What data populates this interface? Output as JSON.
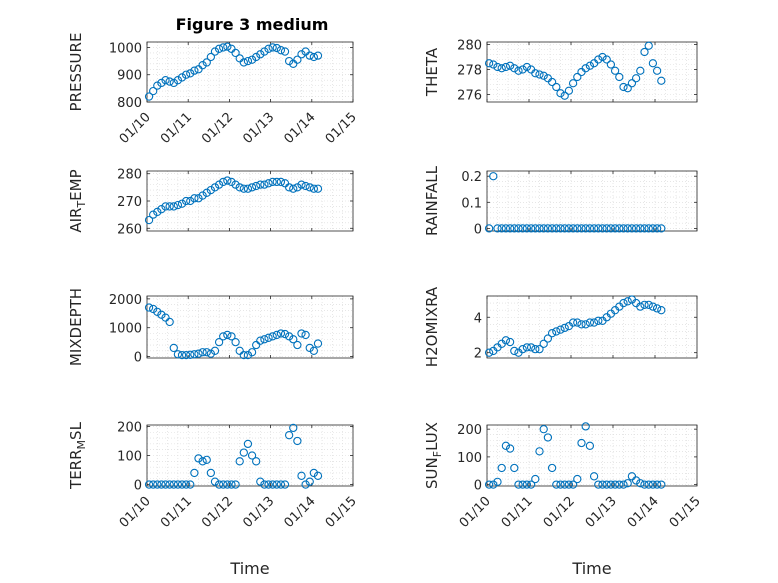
{
  "figure": {
    "title": "Figure 3 medium",
    "marker_color": "#0072BD"
  },
  "chart_data": [
    {
      "type": "scatter",
      "title": "Figure 3 medium",
      "ylabel": "PRESSURE",
      "ylim": [
        800,
        1020
      ],
      "yticks": [
        800,
        900,
        1000
      ],
      "xlim": [
        "01/10",
        "01/15"
      ],
      "xticks": [
        "01/10",
        "01/11",
        "01/12",
        "01/13",
        "01/14",
        "01/15"
      ],
      "grid": true,
      "series": [
        {
          "x": [
            10.05,
            10.15,
            10.25,
            10.35,
            10.45,
            10.55,
            10.65,
            10.75,
            10.85,
            10.95,
            11.05,
            11.15,
            11.25,
            11.35,
            11.45,
            11.55,
            11.65,
            11.75,
            11.85,
            11.95,
            12.05,
            12.15,
            12.25,
            12.35,
            12.45,
            12.55,
            12.65,
            12.75,
            12.85,
            12.95,
            13.05,
            13.15,
            13.25,
            13.35,
            13.45,
            13.55,
            13.65,
            13.75,
            13.85,
            13.95,
            14.05,
            14.15
          ],
          "y": [
            820,
            840,
            860,
            870,
            880,
            875,
            870,
            880,
            890,
            900,
            905,
            915,
            920,
            935,
            945,
            965,
            985,
            995,
            1000,
            1003,
            995,
            980,
            960,
            945,
            950,
            955,
            965,
            975,
            985,
            995,
            1000,
            998,
            990,
            985,
            950,
            940,
            955,
            975,
            985,
            970,
            965,
            970
          ]
        }
      ]
    },
    {
      "type": "scatter",
      "ylabel": "THETA",
      "ylim": [
        275.4,
        280.2
      ],
      "yticks": [
        276,
        278,
        280
      ],
      "xlim": [
        "01/10",
        "01/15"
      ],
      "grid": true,
      "series": [
        {
          "x": [
            10.05,
            10.15,
            10.25,
            10.35,
            10.45,
            10.55,
            10.65,
            10.75,
            10.85,
            10.95,
            11.05,
            11.15,
            11.25,
            11.35,
            11.45,
            11.55,
            11.65,
            11.75,
            11.85,
            11.95,
            12.05,
            12.15,
            12.25,
            12.35,
            12.45,
            12.55,
            12.65,
            12.75,
            12.85,
            12.95,
            13.05,
            13.15,
            13.25,
            13.35,
            13.45,
            13.55,
            13.65,
            13.75,
            13.85,
            13.95,
            14.05,
            14.15
          ],
          "y": [
            278.5,
            278.4,
            278.2,
            278.1,
            278.2,
            278.3,
            278.1,
            277.9,
            278.0,
            278.2,
            278.0,
            277.7,
            277.6,
            277.5,
            277.3,
            277.0,
            276.6,
            276.1,
            275.9,
            276.3,
            276.9,
            277.4,
            277.8,
            278.1,
            278.3,
            278.5,
            278.8,
            279.0,
            278.8,
            278.4,
            277.9,
            277.4,
            276.6,
            276.5,
            276.9,
            277.3,
            277.9,
            279.4,
            279.9,
            278.5,
            277.9,
            277.1
          ]
        }
      ]
    },
    {
      "type": "scatter",
      "ylabel": "AIR",
      "ylabel_sub": "T",
      "ylabel_rest": "EMP",
      "ylim": [
        259,
        281
      ],
      "yticks": [
        260,
        270,
        280
      ],
      "xlim": [
        "01/10",
        "01/15"
      ],
      "grid": true,
      "series": [
        {
          "x": [
            10.05,
            10.15,
            10.25,
            10.35,
            10.45,
            10.55,
            10.65,
            10.75,
            10.85,
            10.95,
            11.05,
            11.15,
            11.25,
            11.35,
            11.45,
            11.55,
            11.65,
            11.75,
            11.85,
            11.95,
            12.05,
            12.15,
            12.25,
            12.35,
            12.45,
            12.55,
            12.65,
            12.75,
            12.85,
            12.95,
            13.05,
            13.15,
            13.25,
            13.35,
            13.45,
            13.55,
            13.65,
            13.75,
            13.85,
            13.95,
            14.05,
            14.15
          ],
          "y": [
            263,
            265,
            266,
            267,
            268,
            268,
            268,
            268.5,
            269,
            270,
            270,
            271,
            271,
            272,
            273,
            274,
            275,
            276,
            277,
            277.5,
            277,
            276,
            275,
            274.5,
            274.5,
            275,
            275.5,
            276,
            276,
            276.5,
            277,
            277,
            277,
            276.5,
            275,
            274.5,
            275,
            276,
            275.5,
            275,
            274.5,
            274.5
          ]
        }
      ]
    },
    {
      "type": "scatter",
      "ylabel": "RAINFALL",
      "ylim": [
        -0.01,
        0.22
      ],
      "yticks": [
        0,
        0.1,
        0.2
      ],
      "ytick_labels": [
        "0",
        "0.1",
        "0.2"
      ],
      "xlim": [
        "01/10",
        "01/15"
      ],
      "grid": true,
      "series": [
        {
          "x": [
            10.05,
            10.15,
            10.25,
            10.35,
            10.45,
            10.55,
            10.65,
            10.75,
            10.85,
            10.95,
            11.05,
            11.15,
            11.25,
            11.35,
            11.45,
            11.55,
            11.65,
            11.75,
            11.85,
            11.95,
            12.05,
            12.15,
            12.25,
            12.35,
            12.45,
            12.55,
            12.65,
            12.75,
            12.85,
            12.95,
            13.05,
            13.15,
            13.25,
            13.35,
            13.45,
            13.55,
            13.65,
            13.75,
            13.85,
            13.95,
            14.05,
            14.15
          ],
          "y": [
            0,
            0.2,
            0,
            0,
            0,
            0,
            0,
            0,
            0,
            0,
            0,
            0,
            0,
            0,
            0,
            0,
            0,
            0,
            0,
            0,
            0,
            0,
            0,
            0,
            0,
            0,
            0,
            0,
            0,
            0,
            0,
            0,
            0,
            0,
            0,
            0,
            0,
            0,
            0,
            0,
            0,
            0
          ]
        }
      ]
    },
    {
      "type": "scatter",
      "ylabel": "MIXDEPTH",
      "ylim": [
        -50,
        2100
      ],
      "yticks": [
        0,
        1000,
        2000
      ],
      "xlim": [
        "01/10",
        "01/15"
      ],
      "grid": true,
      "series": [
        {
          "x": [
            10.05,
            10.15,
            10.25,
            10.35,
            10.45,
            10.55,
            10.65,
            10.75,
            10.85,
            10.95,
            11.05,
            11.15,
            11.25,
            11.35,
            11.45,
            11.55,
            11.65,
            11.75,
            11.85,
            11.95,
            12.05,
            12.15,
            12.25,
            12.35,
            12.45,
            12.55,
            12.65,
            12.75,
            12.85,
            12.95,
            13.05,
            13.15,
            13.25,
            13.35,
            13.45,
            13.55,
            13.65,
            13.75,
            13.85,
            13.95,
            14.05,
            14.15
          ],
          "y": [
            1700,
            1650,
            1550,
            1450,
            1350,
            1200,
            300,
            80,
            50,
            50,
            60,
            80,
            100,
            150,
            150,
            100,
            200,
            500,
            700,
            750,
            700,
            500,
            200,
            50,
            50,
            150,
            400,
            550,
            600,
            650,
            700,
            750,
            800,
            780,
            700,
            600,
            400,
            800,
            750,
            300,
            200,
            450
          ]
        }
      ]
    },
    {
      "type": "scatter",
      "ylabel": "H2OMIXRA",
      "ylim": [
        1.7,
        5.2
      ],
      "yticks": [
        2,
        4
      ],
      "xlim": [
        "01/10",
        "01/15"
      ],
      "grid": true,
      "series": [
        {
          "x": [
            10.05,
            10.15,
            10.25,
            10.35,
            10.45,
            10.55,
            10.65,
            10.75,
            10.85,
            10.95,
            11.05,
            11.15,
            11.25,
            11.35,
            11.45,
            11.55,
            11.65,
            11.75,
            11.85,
            11.95,
            12.05,
            12.15,
            12.25,
            12.35,
            12.45,
            12.55,
            12.65,
            12.75,
            12.85,
            12.95,
            13.05,
            13.15,
            13.25,
            13.35,
            13.45,
            13.55,
            13.65,
            13.75,
            13.85,
            13.95,
            14.05,
            14.15
          ],
          "y": [
            2.0,
            2.1,
            2.3,
            2.5,
            2.7,
            2.6,
            2.1,
            2.0,
            2.2,
            2.3,
            2.3,
            2.2,
            2.2,
            2.5,
            2.8,
            3.1,
            3.2,
            3.3,
            3.4,
            3.5,
            3.7,
            3.7,
            3.6,
            3.6,
            3.7,
            3.7,
            3.8,
            3.8,
            4.0,
            4.2,
            4.4,
            4.6,
            4.8,
            4.9,
            5.0,
            4.8,
            4.6,
            4.7,
            4.7,
            4.6,
            4.5,
            4.4
          ]
        }
      ]
    },
    {
      "type": "scatter",
      "ylabel": "TERR",
      "ylabel_sub": "M",
      "ylabel_rest": "SL",
      "ylim": [
        -5,
        205
      ],
      "yticks": [
        0,
        100,
        200
      ],
      "xlim": [
        "01/10",
        "01/15"
      ],
      "xticks": [
        "01/10",
        "01/11",
        "01/12",
        "01/13",
        "01/14",
        "01/15"
      ],
      "xlabel": "Time",
      "grid": true,
      "series": [
        {
          "x": [
            10.05,
            10.15,
            10.25,
            10.35,
            10.45,
            10.55,
            10.65,
            10.75,
            10.85,
            10.95,
            11.05,
            11.15,
            11.25,
            11.35,
            11.45,
            11.55,
            11.65,
            11.75,
            11.85,
            11.95,
            12.05,
            12.15,
            12.25,
            12.35,
            12.45,
            12.55,
            12.65,
            12.75,
            12.85,
            12.95,
            13.05,
            13.15,
            13.25,
            13.35,
            13.45,
            13.55,
            13.65,
            13.75,
            13.85,
            13.95,
            14.05,
            14.15
          ],
          "y": [
            0,
            0,
            0,
            0,
            0,
            0,
            0,
            0,
            0,
            0,
            0,
            40,
            90,
            80,
            85,
            40,
            10,
            0,
            0,
            0,
            0,
            0,
            80,
            110,
            140,
            100,
            80,
            10,
            0,
            0,
            0,
            0,
            0,
            0,
            170,
            195,
            150,
            30,
            0,
            10,
            40,
            30
          ]
        }
      ]
    },
    {
      "type": "scatter",
      "ylabel": "SUN",
      "ylabel_sub": "F",
      "ylabel_rest": "LUX",
      "ylim": [
        -5,
        215
      ],
      "yticks": [
        0,
        100,
        200
      ],
      "xlim": [
        "01/10",
        "01/15"
      ],
      "xticks": [
        "01/10",
        "01/11",
        "01/12",
        "01/13",
        "01/14",
        "01/15"
      ],
      "xlabel": "Time",
      "grid": true,
      "series": [
        {
          "x": [
            10.05,
            10.15,
            10.25,
            10.35,
            10.45,
            10.55,
            10.65,
            10.75,
            10.85,
            10.95,
            11.05,
            11.15,
            11.25,
            11.35,
            11.45,
            11.55,
            11.65,
            11.75,
            11.85,
            11.95,
            12.05,
            12.15,
            12.25,
            12.35,
            12.45,
            12.55,
            12.65,
            12.75,
            12.85,
            12.95,
            13.05,
            13.15,
            13.25,
            13.35,
            13.45,
            13.55,
            13.65,
            13.75,
            13.85,
            13.95,
            14.05,
            14.15
          ],
          "y": [
            0,
            0,
            10,
            60,
            140,
            130,
            60,
            0,
            0,
            0,
            0,
            20,
            120,
            200,
            170,
            60,
            0,
            0,
            0,
            0,
            0,
            20,
            150,
            210,
            140,
            30,
            0,
            0,
            0,
            0,
            0,
            0,
            0,
            5,
            30,
            15,
            5,
            0,
            0,
            0,
            0,
            0
          ]
        }
      ]
    }
  ]
}
